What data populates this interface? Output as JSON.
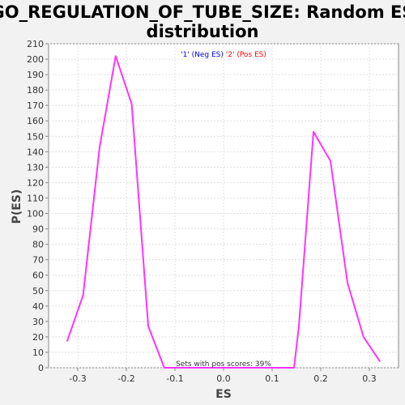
{
  "chart_data": {
    "type": "line",
    "title_line1": "GO_REGULATION_OF_TUBE_SIZE: Random ES",
    "title_line2": "distribution",
    "xlabel": "ES",
    "ylabel": "P(ES)",
    "xlim": [
      -0.36,
      0.36
    ],
    "ylim": [
      0,
      210
    ],
    "x_ticks": [
      -0.3,
      -0.2,
      -0.1,
      0.0,
      0.1,
      0.2,
      0.3
    ],
    "x_tick_labels": [
      "-0.3",
      "-0.2",
      "-0.1",
      "0.0",
      "0.1",
      "0.2",
      "0.3"
    ],
    "y_ticks": [
      0,
      10,
      20,
      30,
      40,
      50,
      60,
      70,
      80,
      90,
      100,
      110,
      120,
      130,
      140,
      150,
      160,
      170,
      180,
      190,
      200,
      210
    ],
    "grid": true,
    "legend": {
      "placement": "top-center",
      "entries": [
        {
          "label": "'1' (Neg ES)",
          "color": "#0000ff"
        },
        {
          "label": "'2' (Pos ES)",
          "color": "#ff0000"
        }
      ]
    },
    "annotation": "Sets with pos scores: 39%",
    "series": [
      {
        "color": "#ff33ff",
        "x": [
          -0.322,
          -0.289,
          -0.255,
          -0.222,
          -0.189,
          -0.155,
          -0.122,
          -0.089,
          -0.056,
          -0.022,
          0.011,
          0.045,
          0.078,
          0.111,
          0.145,
          0.155,
          0.185,
          0.22,
          0.255,
          0.288,
          0.322
        ],
        "y": [
          17,
          47,
          143,
          202,
          171,
          27,
          0,
          0,
          0,
          0,
          0,
          0,
          0,
          0,
          0,
          27,
          153,
          134,
          55,
          20,
          4
        ]
      }
    ]
  }
}
